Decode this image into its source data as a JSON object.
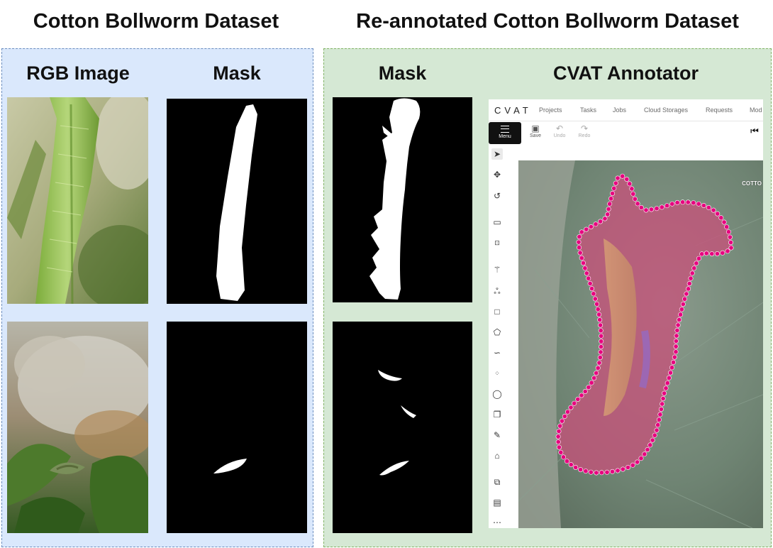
{
  "titles": {
    "left": "Cotton Bollworm Dataset",
    "right": "Re-annotated Cotton Bollworm Dataset"
  },
  "columns": {
    "rgb": "RGB Image",
    "mask": "Mask",
    "mask_reannotated": "Mask",
    "cvat": "CVAT Annotator"
  },
  "colors": {
    "left_panel_bg": "#dae8fc",
    "left_panel_border": "#6c8ebf",
    "right_panel_bg": "#d5e8d4",
    "right_panel_border": "#82b366",
    "annotation_points": "#e6007e"
  },
  "cvat": {
    "logo": "CVAT",
    "nav": [
      "Projects",
      "Tasks",
      "Jobs",
      "Cloud Storages",
      "Requests",
      "Mod"
    ],
    "toolbar": {
      "menu": "Menu",
      "save": "Save",
      "undo": "Undo",
      "redo": "Redo"
    },
    "tools": [
      "cursor-icon",
      "move-icon",
      "rotate-icon",
      "fit-icon",
      "zoom-region-icon",
      "magic-wand-icon",
      "ai-tools-icon",
      "rectangle-icon",
      "polygon-icon",
      "polyline-icon",
      "points-icon",
      "ellipse-icon",
      "cuboid-icon",
      "brush-icon",
      "tag-icon",
      "merge-icon",
      "group-icon",
      "more-icon"
    ],
    "canvas_label": "COTTO"
  }
}
